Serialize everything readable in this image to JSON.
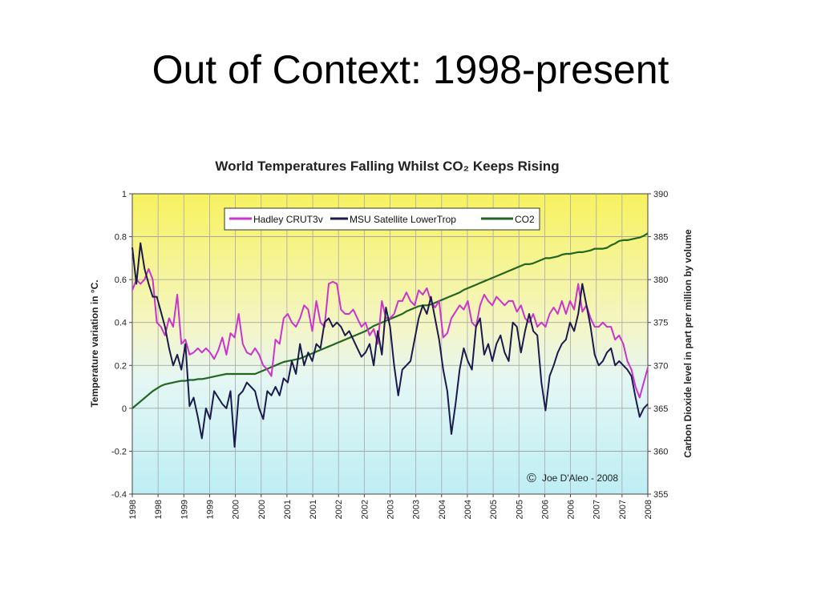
{
  "slide": {
    "title": "Out of Context: 1998-present"
  },
  "chart_data": {
    "type": "line",
    "title": "World Temperatures Falling Whilst CO₂ Keeps Rising",
    "ylabel": "Temperature variation in °C.",
    "y2label": "Carbon Dioxide level in part per million by volume",
    "ylim": [
      -0.4,
      1
    ],
    "y2lim": [
      355,
      390
    ],
    "yticks": [
      "1",
      "0.8",
      "0.6",
      "0.4",
      "0.2",
      "0",
      "-0.2",
      "-0.4"
    ],
    "y2ticks": [
      "390",
      "385",
      "380",
      "375",
      "370",
      "365",
      "360",
      "355"
    ],
    "xticklabels": [
      "1998",
      "1998",
      "1999",
      "1999",
      "2000",
      "2000",
      "2001",
      "2001",
      "2002",
      "2002",
      "2003",
      "2003",
      "2004",
      "2004",
      "2005",
      "2005",
      "2006",
      "2006",
      "2007",
      "2007",
      "2008"
    ],
    "copyright": "Joe D'Aleo - 2008",
    "copyright_symbol": "©",
    "legend_position": "top",
    "grid": true,
    "series": [
      {
        "name": "Hadley CRUT3v",
        "color": "#cc33cc",
        "axis": "left",
        "values": [
          0.55,
          0.6,
          0.58,
          0.6,
          0.65,
          0.6,
          0.4,
          0.38,
          0.34,
          0.42,
          0.38,
          0.53,
          0.3,
          0.32,
          0.25,
          0.26,
          0.28,
          0.26,
          0.28,
          0.26,
          0.23,
          0.27,
          0.33,
          0.25,
          0.35,
          0.33,
          0.44,
          0.3,
          0.26,
          0.25,
          0.28,
          0.25,
          0.2,
          0.18,
          0.15,
          0.32,
          0.3,
          0.42,
          0.44,
          0.4,
          0.38,
          0.42,
          0.48,
          0.46,
          0.36,
          0.5,
          0.4,
          0.38,
          0.58,
          0.59,
          0.58,
          0.46,
          0.44,
          0.44,
          0.46,
          0.42,
          0.38,
          0.4,
          0.34,
          0.37,
          0.3,
          0.5,
          0.42,
          0.42,
          0.44,
          0.5,
          0.5,
          0.54,
          0.5,
          0.48,
          0.55,
          0.53,
          0.56,
          0.5,
          0.47,
          0.5,
          0.33,
          0.35,
          0.42,
          0.45,
          0.48,
          0.46,
          0.5,
          0.4,
          0.38,
          0.48,
          0.53,
          0.5,
          0.48,
          0.52,
          0.5,
          0.48,
          0.5,
          0.5,
          0.45,
          0.48,
          0.42,
          0.4,
          0.44,
          0.38,
          0.4,
          0.38,
          0.44,
          0.47,
          0.44,
          0.5,
          0.44,
          0.5,
          0.46,
          0.58,
          0.45,
          0.48,
          0.42,
          0.38,
          0.38,
          0.4,
          0.38,
          0.38,
          0.32,
          0.34,
          0.3,
          0.22,
          0.18,
          0.1,
          0.05,
          0.12,
          0.19
        ]
      },
      {
        "name": "MSU Satellite LowerTrop",
        "color": "#1a1a4d",
        "axis": "left",
        "values": [
          0.75,
          0.58,
          0.77,
          0.65,
          0.58,
          0.52,
          0.52,
          0.45,
          0.38,
          0.28,
          0.2,
          0.25,
          0.18,
          0.3,
          0.01,
          0.05,
          -0.04,
          -0.14,
          0.0,
          -0.05,
          0.08,
          0.05,
          0.02,
          0.0,
          0.08,
          -0.18,
          0.06,
          0.08,
          0.12,
          0.1,
          0.08,
          0.0,
          -0.05,
          0.08,
          0.06,
          0.1,
          0.06,
          0.14,
          0.12,
          0.22,
          0.16,
          0.3,
          0.2,
          0.26,
          0.22,
          0.3,
          0.28,
          0.4,
          0.42,
          0.38,
          0.4,
          0.38,
          0.34,
          0.36,
          0.32,
          0.28,
          0.24,
          0.26,
          0.3,
          0.2,
          0.36,
          0.25,
          0.47,
          0.38,
          0.2,
          0.06,
          0.18,
          0.2,
          0.22,
          0.32,
          0.42,
          0.48,
          0.44,
          0.52,
          0.42,
          0.32,
          0.18,
          0.08,
          -0.12,
          0.02,
          0.18,
          0.28,
          0.22,
          0.18,
          0.38,
          0.42,
          0.25,
          0.3,
          0.22,
          0.3,
          0.34,
          0.26,
          0.22,
          0.4,
          0.38,
          0.26,
          0.36,
          0.44,
          0.36,
          0.34,
          0.12,
          -0.01,
          0.15,
          0.2,
          0.26,
          0.3,
          0.32,
          0.4,
          0.36,
          0.44,
          0.58,
          0.48,
          0.38,
          0.25,
          0.2,
          0.22,
          0.26,
          0.28,
          0.2,
          0.22,
          0.2,
          0.18,
          0.15,
          0.05,
          -0.04,
          0.0,
          0.02
        ]
      },
      {
        "name": "CO2",
        "color": "#226622",
        "axis": "right",
        "values": [
          365.0,
          365.4,
          365.8,
          366.2,
          366.6,
          367.0,
          367.3,
          367.6,
          367.8,
          367.9,
          368.0,
          368.1,
          368.2,
          368.2,
          368.3,
          368.3,
          368.4,
          368.4,
          368.5,
          368.6,
          368.7,
          368.8,
          368.9,
          369.0,
          369.0,
          369.0,
          369.0,
          369.0,
          369.0,
          369.0,
          369.0,
          369.2,
          369.4,
          369.6,
          369.8,
          370.0,
          370.2,
          370.4,
          370.5,
          370.6,
          370.7,
          370.8,
          371.0,
          371.2,
          371.4,
          371.6,
          371.8,
          372.0,
          372.2,
          372.4,
          372.6,
          372.8,
          373.0,
          373.2,
          373.4,
          373.6,
          373.8,
          374.0,
          374.3,
          374.6,
          374.8,
          375.0,
          375.2,
          375.4,
          375.6,
          375.8,
          376.0,
          376.3,
          376.5,
          376.7,
          376.9,
          377.0,
          377.0,
          377.1,
          377.3,
          377.5,
          377.7,
          377.9,
          378.1,
          378.3,
          378.5,
          378.8,
          379.0,
          379.2,
          379.4,
          379.6,
          379.8,
          380.0,
          380.2,
          380.4,
          380.6,
          380.8,
          381.0,
          381.2,
          381.4,
          381.6,
          381.8,
          381.8,
          381.9,
          382.1,
          382.3,
          382.5,
          382.5,
          382.6,
          382.7,
          382.9,
          383.0,
          383.0,
          383.1,
          383.2,
          383.2,
          383.3,
          383.4,
          383.6,
          383.6,
          383.6,
          383.7,
          384.0,
          384.2,
          384.5,
          384.6,
          384.6,
          384.7,
          384.8,
          384.9,
          385.1,
          385.4
        ]
      }
    ]
  }
}
